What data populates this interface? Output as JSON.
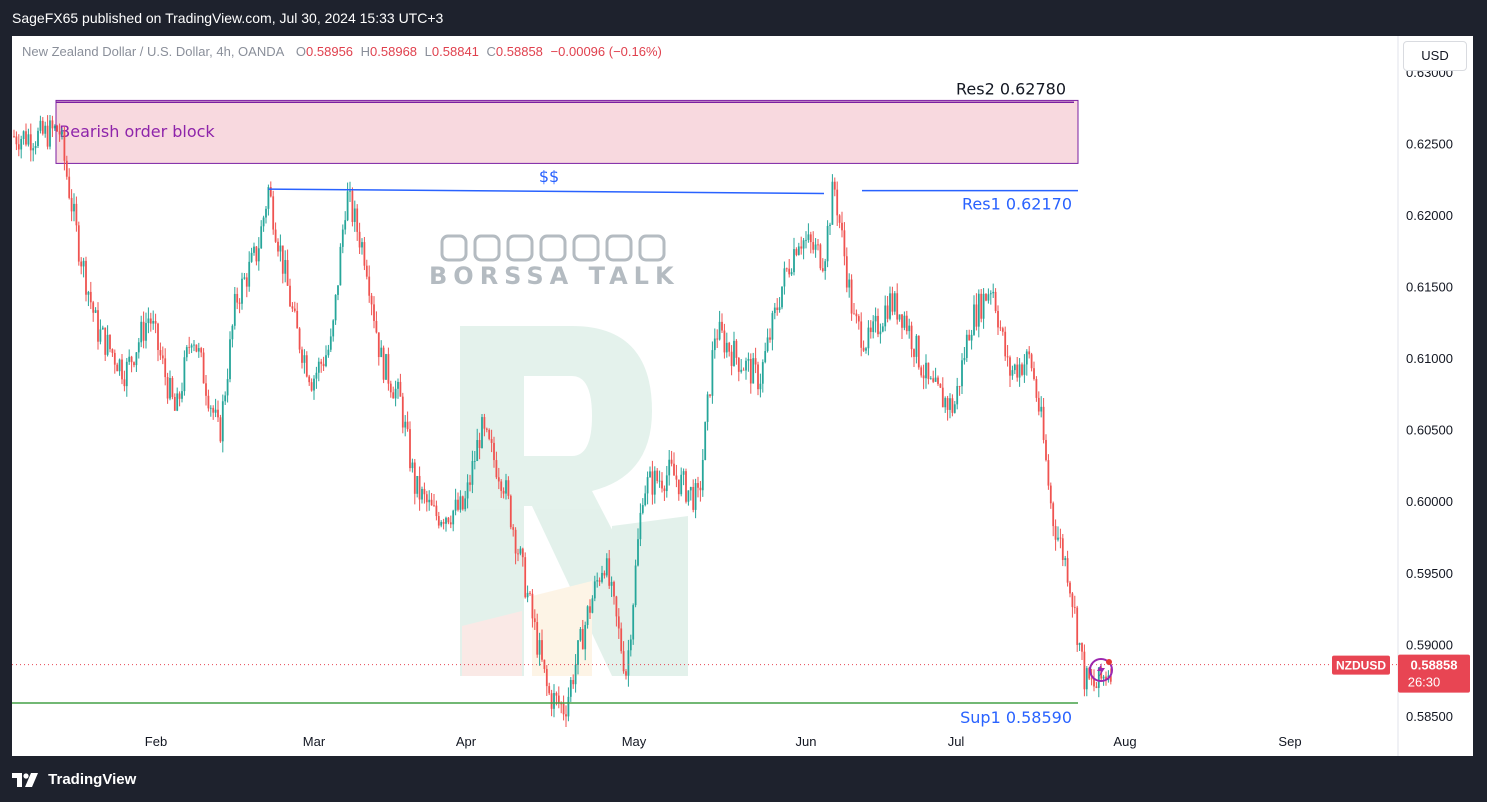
{
  "header": {
    "publisher_line": "SageFX65 published on TradingView.com, Jul 30, 2024 15:33 UTC+3"
  },
  "legend": {
    "symbol_name": "New Zealand Dollar / U.S. Dollar, 4h, OANDA",
    "o_label": "O",
    "o_value": "0.58956",
    "h_label": "H",
    "h_value": "0.58968",
    "l_label": "L",
    "l_value": "0.58841",
    "c_label": "C",
    "c_value": "0.58858",
    "change": "−0.00096 (−0.16%)"
  },
  "currency_button": "USD",
  "footer": {
    "brand": "TradingView"
  },
  "watermark": {
    "brand_text": "BORSSA TALK",
    "social_icons": [
      "instagram-icon",
      "facebook-icon",
      "youtube-icon",
      "linkedin-icon",
      "tiktok-icon",
      "telegram-icon",
      "x-icon"
    ]
  },
  "colors": {
    "up": "#26a69a",
    "down": "#ef5350",
    "order_block_fill": "#f8d9df",
    "order_block_border": "#7b1fa2",
    "res_line": "#2962ff",
    "sup_line": "#43a047",
    "price_tag": "#e84553"
  },
  "chart_data": {
    "type": "candlestick",
    "symbol": "NZDUSD",
    "timeframe": "4h",
    "x_axis_labels": [
      "Feb",
      "Mar",
      "Apr",
      "May",
      "Jun",
      "Jul",
      "Aug",
      "Sep"
    ],
    "y_axis_labels": [
      "0.63000",
      "0.62500",
      "0.62000",
      "0.61500",
      "0.61000",
      "0.60500",
      "0.60000",
      "0.59500",
      "0.59000",
      "0.58500"
    ],
    "ylim": [
      0.5822,
      0.6325
    ],
    "last_price": "0.58858",
    "countdown": "26:30",
    "price_tag_symbol": "NZDUSD",
    "approx_swing_path": [
      [
        "Jan 08",
        0.6255
      ],
      [
        "Jan 12",
        0.626
      ],
      [
        "Jan 16",
        0.618
      ],
      [
        "Jan 20",
        0.612
      ],
      [
        "Jan 26",
        0.609
      ],
      [
        "Jan 31",
        0.613
      ],
      [
        "Feb 05",
        0.606
      ],
      [
        "Feb 08",
        0.612
      ],
      [
        "Feb 13",
        0.6045
      ],
      [
        "Feb 16",
        0.614
      ],
      [
        "Feb 20",
        0.6175
      ],
      [
        "Feb 22",
        0.6218
      ],
      [
        "Feb 27",
        0.612
      ],
      [
        "Mar 01",
        0.6085
      ],
      [
        "Mar 05",
        0.611
      ],
      [
        "Mar 08",
        0.6215
      ],
      [
        "Mar 12",
        0.617
      ],
      [
        "Mar 15",
        0.61
      ],
      [
        "Mar 19",
        0.607
      ],
      [
        "Mar 22",
        0.601
      ],
      [
        "Mar 26",
        0.599
      ],
      [
        "Apr 01",
        0.5995
      ],
      [
        "Apr 04",
        0.605
      ],
      [
        "Apr 08",
        0.6015
      ],
      [
        "Apr 11",
        0.596
      ],
      [
        "Apr 16",
        0.5865
      ],
      [
        "Apr 19",
        0.5855
      ],
      [
        "Apr 23",
        0.592
      ],
      [
        "Apr 26",
        0.596
      ],
      [
        "Apr 30",
        0.588
      ],
      [
        "May 03",
        0.601
      ],
      [
        "May 08",
        0.602
      ],
      [
        "May 13",
        0.6
      ],
      [
        "May 16",
        0.612
      ],
      [
        "May 20",
        0.61
      ],
      [
        "May 24",
        0.6085
      ],
      [
        "May 28",
        0.615
      ],
      [
        "May 31",
        0.6185
      ],
      [
        "Jun 05",
        0.617
      ],
      [
        "Jun 07",
        0.6222
      ],
      [
        "Jun 11",
        0.6125
      ],
      [
        "Jun 14",
        0.611
      ],
      [
        "Jun 18",
        0.614
      ],
      [
        "Jun 21",
        0.613
      ],
      [
        "Jun 26",
        0.608
      ],
      [
        "Jul 01",
        0.6065
      ],
      [
        "Jul 04",
        0.6125
      ],
      [
        "Jul 08",
        0.6152
      ],
      [
        "Jul 11",
        0.609
      ],
      [
        "Jul 15",
        0.61
      ],
      [
        "Jul 17",
        0.6055
      ],
      [
        "Jul 19",
        0.599
      ],
      [
        "Jul 22",
        0.595
      ],
      [
        "Jul 25",
        0.5875
      ],
      [
        "Jul 27",
        0.587
      ],
      [
        "Jul 30",
        0.5886
      ]
    ],
    "annotations": [
      {
        "kind": "zone",
        "label": "Bearish order block",
        "from": 0.6236,
        "to": 0.628
      },
      {
        "kind": "level",
        "label": "Res2 0.62780",
        "price": 0.6278
      },
      {
        "kind": "level",
        "label": "Res1 0.62170",
        "price": 0.6217
      },
      {
        "kind": "level",
        "label": "Sup1 0.58590",
        "price": 0.5859
      },
      {
        "kind": "trendline",
        "label": "$$",
        "from": [
          "Feb 22",
          0.6218
        ],
        "to": [
          "Jun 05",
          0.6215
        ]
      }
    ]
  }
}
